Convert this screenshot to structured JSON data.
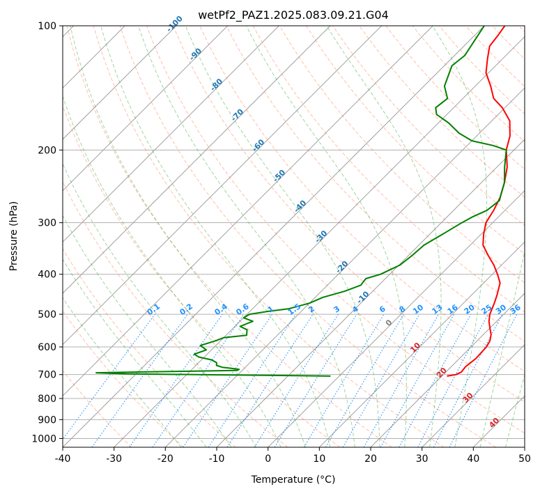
{
  "chart_data": {
    "type": "line",
    "title": "wetPf2_PAZ1.2025.083.09.21.G04",
    "xlabel": "Temperature (°C)",
    "ylabel": "Pressure (hPa)",
    "xlim": [
      -40,
      50
    ],
    "ylim": [
      1050,
      100
    ],
    "y_scale": "log",
    "x_ticks": [
      "-40",
      "-30",
      "-20",
      "-10",
      "0",
      "10",
      "20",
      "30",
      "40",
      "50"
    ],
    "y_ticks": [
      "100",
      "200",
      "300",
      "400",
      "500",
      "600",
      "700",
      "800",
      "900",
      "1000"
    ],
    "y_tick_values": [
      100,
      200,
      300,
      400,
      500,
      600,
      700,
      800,
      900,
      1000
    ],
    "grid": true,
    "colors": {
      "temperature": "#ff0000",
      "dewpoint": "#008000",
      "dry_adiabat": "#ff7f50",
      "moist_adiabat": "#2ca02c",
      "mixing_ratio": "#1e90ff",
      "isotherm": "#808080",
      "isotherm_label_cold": "#1f77b4",
      "isotherm_label_warm": "#d62728"
    },
    "series": [
      {
        "name": "",
        "role": "temperature",
        "points": [
          [
            21.0,
            706
          ],
          [
            22.5,
            700
          ],
          [
            23.0,
            690
          ],
          [
            22.8,
            670
          ],
          [
            23.2,
            640
          ],
          [
            23.0,
            600
          ],
          [
            22.5,
            580
          ],
          [
            21.5,
            560
          ],
          [
            20.0,
            540
          ],
          [
            18.5,
            520
          ],
          [
            17.3,
            500
          ],
          [
            16.0,
            470
          ],
          [
            15.0,
            450
          ],
          [
            13.2,
            420
          ],
          [
            11.0,
            400
          ],
          [
            8.5,
            380
          ],
          [
            5.5,
            360
          ],
          [
            2.5,
            340
          ],
          [
            0.5,
            320
          ],
          [
            -1.3,
            300
          ],
          [
            -2.2,
            280
          ],
          [
            -3.5,
            260
          ],
          [
            -5.5,
            240
          ],
          [
            -8.0,
            220
          ],
          [
            -11.5,
            200
          ],
          [
            -13.5,
            185
          ],
          [
            -16.5,
            170
          ],
          [
            -20.5,
            158
          ],
          [
            -24.0,
            150
          ],
          [
            -27.0,
            140
          ],
          [
            -30.5,
            130
          ],
          [
            -33.0,
            120
          ],
          [
            -35.0,
            112
          ],
          [
            -35.5,
            105
          ],
          [
            -36.0,
            100
          ]
        ]
      },
      {
        "name": "",
        "role": "dewpoint",
        "points": [
          [
            -1.7,
            706
          ],
          [
            -10.0,
            704
          ],
          [
            -25.0,
            701
          ],
          [
            -42.0,
            697
          ],
          [
            -48.0,
            693
          ],
          [
            -40.0,
            690
          ],
          [
            -30.0,
            687
          ],
          [
            -21.0,
            684
          ],
          [
            -20.8,
            680
          ],
          [
            -22.5,
            676
          ],
          [
            -24.5,
            672
          ],
          [
            -26.0,
            665
          ],
          [
            -26.5,
            655
          ],
          [
            -28.0,
            645
          ],
          [
            -31.0,
            635
          ],
          [
            -32.5,
            625
          ],
          [
            -31.0,
            610
          ],
          [
            -33.0,
            595
          ],
          [
            -31.0,
            580
          ],
          [
            -30.0,
            570
          ],
          [
            -26.0,
            562
          ],
          [
            -27.0,
            545
          ],
          [
            -29.0,
            535
          ],
          [
            -27.5,
            520
          ],
          [
            -30.0,
            510
          ],
          [
            -29.5,
            500
          ],
          [
            -26.5,
            492
          ],
          [
            -23.0,
            485
          ],
          [
            -20.0,
            470
          ],
          [
            -18.5,
            455
          ],
          [
            -15.5,
            440
          ],
          [
            -13.5,
            425
          ],
          [
            -13.8,
            410
          ],
          [
            -11.8,
            400
          ],
          [
            -9.8,
            380
          ],
          [
            -9.3,
            360
          ],
          [
            -9.0,
            340
          ],
          [
            -7.5,
            320
          ],
          [
            -6.0,
            300
          ],
          [
            -5.0,
            290
          ],
          [
            -3.5,
            280
          ],
          [
            -3.0,
            265
          ],
          [
            -4.0,
            255
          ],
          [
            -5.5,
            240
          ],
          [
            -8.5,
            220
          ],
          [
            -11.5,
            200
          ],
          [
            -15.0,
            195
          ],
          [
            -20.0,
            190
          ],
          [
            -24.0,
            182
          ],
          [
            -28.0,
            172
          ],
          [
            -32.0,
            164
          ],
          [
            -33.5,
            158
          ],
          [
            -33.0,
            150
          ],
          [
            -36.0,
            140
          ],
          [
            -38.5,
            125
          ],
          [
            -38.0,
            118
          ],
          [
            -40.0,
            100
          ]
        ]
      }
    ],
    "isotherm_labels": {
      "cold": [
        "-100",
        "-90",
        "-80",
        "-70",
        "-60",
        "-50",
        "-40",
        "-30",
        "-20",
        "-10"
      ],
      "cold_values": [
        -100,
        -90,
        -80,
        -70,
        -60,
        -50,
        -40,
        -30,
        -20,
        -10
      ],
      "zero": "0",
      "warm": [
        "10",
        "20",
        "30",
        "40"
      ],
      "warm_values": [
        10,
        20,
        30,
        40
      ]
    },
    "mixing_ratio_labels": [
      "0.1",
      "0.2",
      "0.4",
      "0.6",
      "1",
      "1.5",
      "2",
      "3",
      "4",
      "6",
      "8",
      "10",
      "13",
      "16",
      "20",
      "25",
      "30",
      "36"
    ],
    "mixing_ratio_values": [
      0.1,
      0.2,
      0.4,
      0.6,
      1,
      1.5,
      2,
      3,
      4,
      6,
      8,
      10,
      13,
      16,
      20,
      25,
      30,
      36
    ],
    "mixing_ratio_label_pressure": 500
  }
}
